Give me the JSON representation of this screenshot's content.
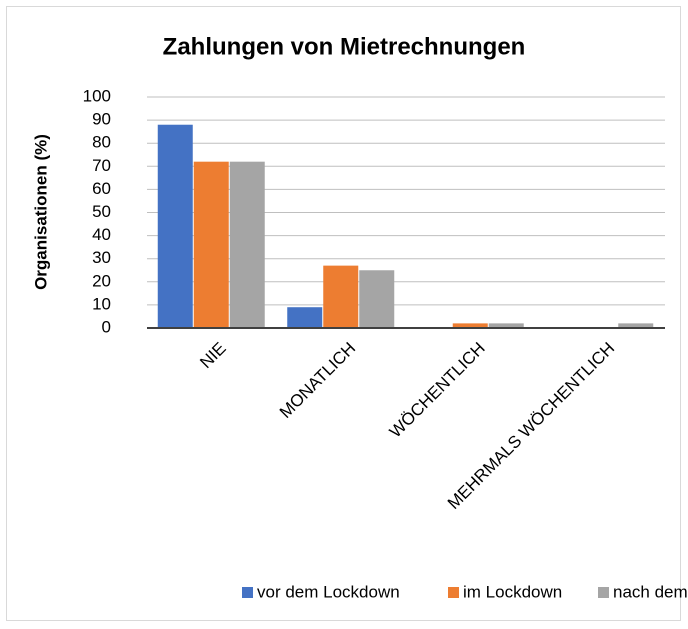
{
  "chart_data": {
    "type": "bar",
    "title": "Zahlungen von Mietrechnungen",
    "y_label": "Organisationen (%)",
    "categories": [
      "NIE",
      "MONATLICH",
      "WÖCHENTLICH",
      "MEHRMALS WÖCHENTLICH"
    ],
    "series": [
      {
        "name": "vor dem Lockdown",
        "color": "#4472c4",
        "values": [
          88,
          9,
          0,
          0
        ]
      },
      {
        "name": "im Lockdown",
        "color": "#ed7d31",
        "values": [
          72,
          27,
          2,
          0
        ]
      },
      {
        "name": "nach dem Lockdown",
        "color": "#a5a5a5",
        "values": [
          72,
          25,
          2,
          2
        ]
      }
    ],
    "ylim": [
      0,
      100
    ],
    "yticks": [
      0,
      10,
      20,
      30,
      40,
      50,
      60,
      70,
      80,
      90,
      100
    ],
    "grid": true,
    "legend": "bottom"
  }
}
